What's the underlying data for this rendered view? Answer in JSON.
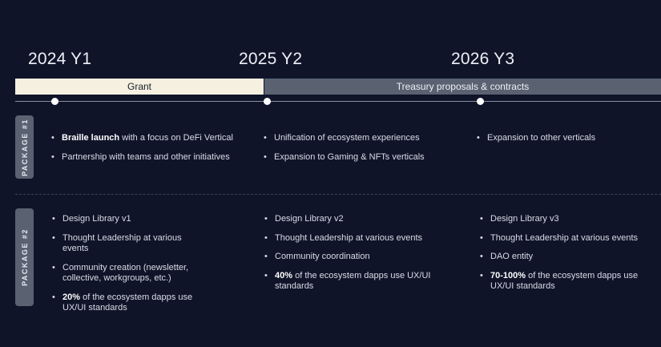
{
  "years": [
    "2024 Y1",
    "2025 Y2",
    "2026 Y3"
  ],
  "phases": {
    "grant": "Grant",
    "treasury": "Treasury proposals & contracts"
  },
  "packages": [
    {
      "label": "PACKAGE #1",
      "columns": [
        [
          {
            "bold": "Braille launch",
            "text": " with a focus on DeFi Vertical"
          },
          {
            "bold": "",
            "text": "Partnership with teams and other initiatives"
          }
        ],
        [
          {
            "bold": "",
            "text": "Unification of ecosystem experiences"
          },
          {
            "bold": "",
            "text": "Expansion to Gaming & NFTs verticals"
          }
        ],
        [
          {
            "bold": "",
            "text": "Expansion to other verticals"
          }
        ]
      ]
    },
    {
      "label": "PACKAGE #2",
      "columns": [
        [
          {
            "bold": "",
            "text": "Design Library v1"
          },
          {
            "bold": "",
            "text": "Thought Leadership at various events"
          },
          {
            "bold": "",
            "text": "Community creation (newsletter, collective, workgroups, etc.)"
          },
          {
            "bold": "20%",
            "text": " of the ecosystem dapps use UX/UI standards"
          }
        ],
        [
          {
            "bold": "",
            "text": "Design Library v2"
          },
          {
            "bold": "",
            "text": "Thought Leadership at various events"
          },
          {
            "bold": "",
            "text": "Community coordination"
          },
          {
            "bold": "40%",
            "text": " of the ecosystem dapps use UX/UI standards"
          }
        ],
        [
          {
            "bold": "",
            "text": "Design Library v3"
          },
          {
            "bold": "",
            "text": "Thought Leadership at various events"
          },
          {
            "bold": "",
            "text": "DAO entity"
          },
          {
            "bold": "70-100%",
            "text": " of the ecosystem dapps use UX/UI standards"
          }
        ]
      ]
    }
  ],
  "colors": {
    "background": "#0f1429",
    "grant_bar": "#f5f0e0",
    "treasury_bar": "#5a6272",
    "package_tab": "#5a6272"
  }
}
